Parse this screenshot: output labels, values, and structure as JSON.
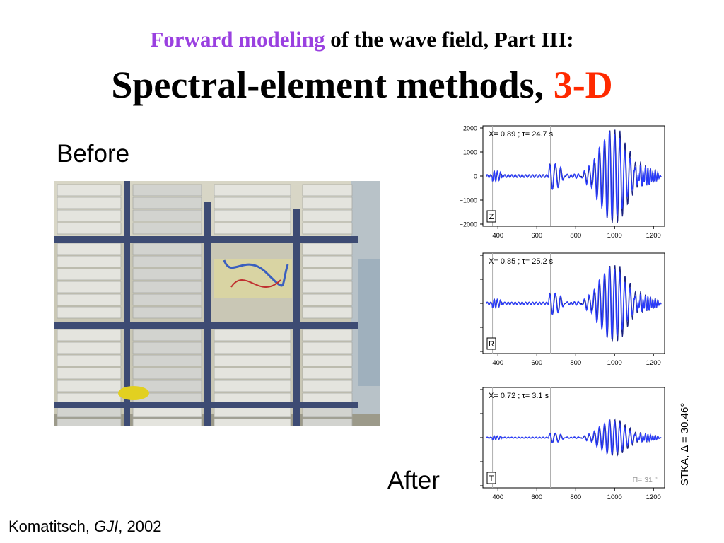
{
  "slide": {
    "title_line1_highlight": "Forward modeling",
    "title_line1_rest": " of the wave field, Part III:",
    "title_line2_main": "Spectral-element methods, ",
    "title_line2_highlight": "3-D",
    "before_label": "Before",
    "after_label": "After",
    "citation_author": "Komatitsch, ",
    "citation_journal": "GJI",
    "citation_year": ", 2002",
    "photo_subject": "rack of desktop PC cluster on metal shelving",
    "colors": {
      "title_highlight": "#9a40e0",
      "accent_red": "#ff2a00",
      "trace_dark": "#1a2280",
      "trace_blue": "#2a3cff"
    }
  },
  "seismograms": {
    "station_label": "STKA, Δ = 30.46°",
    "x_tick_labels": [
      "400",
      "600",
      "800",
      "1000",
      "1200"
    ],
    "y_tick_labels": [
      "2000",
      "1000",
      "0",
      "−1000",
      "−2000"
    ],
    "panels": [
      {
        "component": "Z",
        "x_text": "X=",
        "x_value": "0.89",
        "tau_text": "; τ=",
        "tau_value": "24.7 s"
      },
      {
        "component": "R",
        "x_text": "X=",
        "x_value": "0.85",
        "tau_text": "; τ=",
        "tau_value": "25.2 s"
      },
      {
        "component": "T",
        "x_text": "X=",
        "x_value": "0.72",
        "tau_text": "; τ=",
        "tau_value": "3.1 s",
        "extra": "Π= 31 °"
      }
    ]
  }
}
